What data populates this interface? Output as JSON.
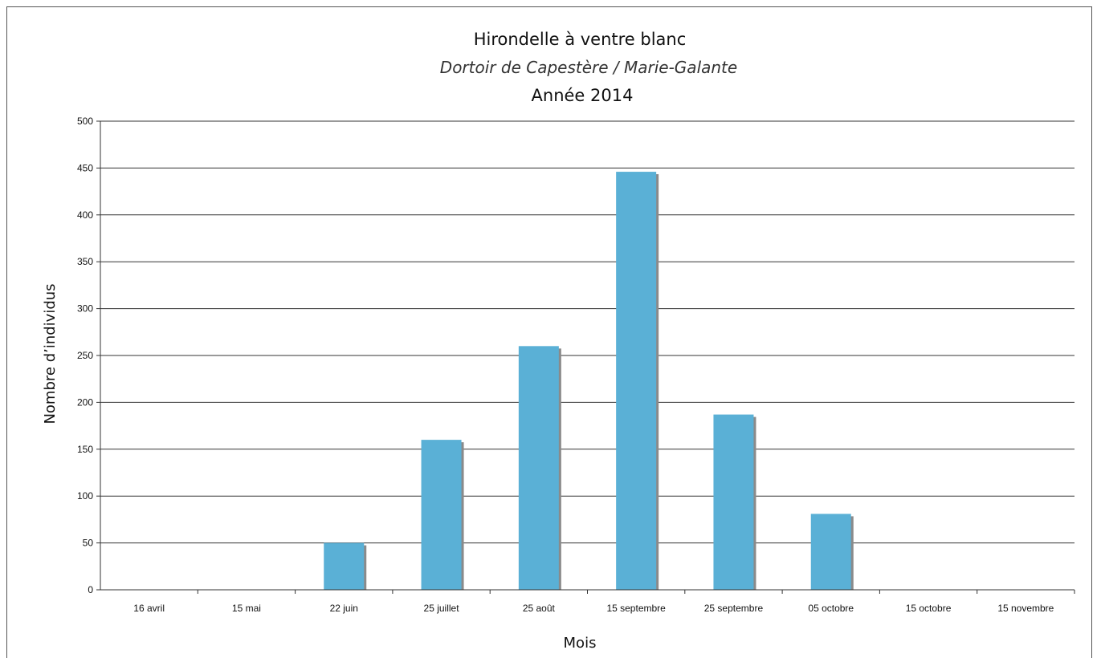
{
  "chart_data": {
    "type": "bar",
    "title": "Hirondelle à ventre blanc",
    "subtitle": "Dortoir de Capestère / Marie-Galante",
    "subtitle2": "Année 2014",
    "xlabel": "Mois",
    "ylabel": "Nombre d’individus",
    "categories": [
      "16 avril",
      "15 mai",
      "22 juin",
      "25 juillet",
      "25 août",
      "15 septembre",
      "25 septembre",
      "05 octobre",
      "15 octobre",
      "15 novembre"
    ],
    "values": [
      0,
      0,
      50,
      160,
      260,
      446,
      187,
      81,
      0,
      0
    ],
    "ylim": [
      0,
      500
    ],
    "yticks": [
      0,
      50,
      100,
      150,
      200,
      250,
      300,
      350,
      400,
      450,
      500
    ],
    "grid": true,
    "colors": {
      "bar": "#5ab0d6",
      "bar_shadow": "#8a8a8a",
      "grid": "#333333"
    }
  }
}
